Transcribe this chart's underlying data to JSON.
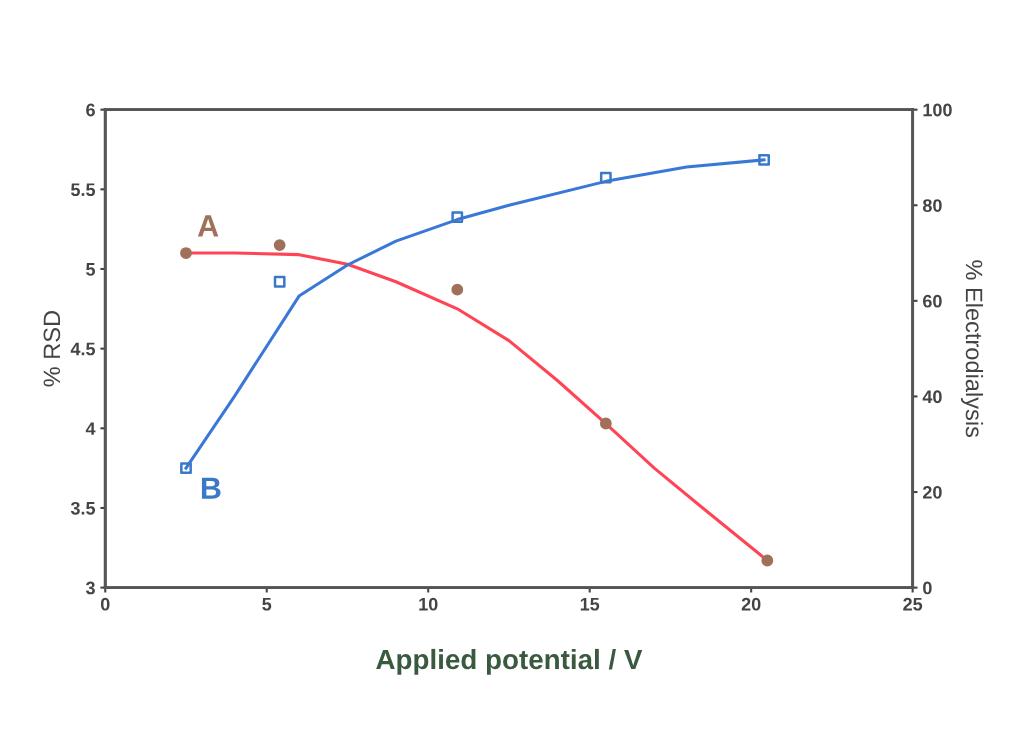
{
  "chart_data": {
    "type": "scatter",
    "xlabel": "Applied potential / V",
    "ylabel": "% RSD",
    "y2label": "% Electrodialysis",
    "xlim": [
      0,
      25
    ],
    "xticks": [
      0,
      5,
      10,
      15,
      20,
      25
    ],
    "ylim": [
      3,
      6
    ],
    "yticks": [
      3,
      3.5,
      4,
      4.5,
      5,
      5.5,
      6
    ],
    "y2lim": [
      0,
      100
    ],
    "y2ticks": [
      0,
      20,
      40,
      60,
      80,
      100
    ],
    "grid": false,
    "legend": false,
    "series": [
      {
        "name": "A",
        "marker": "circle",
        "color": "#a0705a",
        "x": [
          2.5,
          5.4,
          10.9,
          15.5,
          20.5
        ],
        "values": [
          5.1,
          5.15,
          4.87,
          4.03,
          3.17
        ]
      },
      {
        "type": "line",
        "marker": "none",
        "color": "#ff4455",
        "x": [
          2.5,
          4,
          6,
          7.5,
          9,
          10.9,
          12.5,
          14,
          15.5,
          17,
          18.5,
          20.5
        ],
        "values": [
          5.1,
          5.1,
          5.09,
          5.03,
          4.92,
          4.75,
          4.55,
          4.3,
          4.03,
          3.75,
          3.5,
          3.17
        ]
      },
      {
        "name": "B",
        "axis": "y2",
        "marker": "square",
        "color": "#3a78c8",
        "x": [
          2.5,
          5.4,
          10.9,
          15.5,
          20.4
        ],
        "values": [
          25,
          64,
          77.5,
          85.8,
          89.5
        ]
      },
      {
        "type": "line",
        "axis": "y2",
        "marker": "none",
        "color": "#3a78d8",
        "x": [
          2.5,
          4,
          6,
          7.5,
          9,
          10.9,
          12.5,
          15.5,
          18,
          20.4
        ],
        "values": [
          25,
          40,
          61,
          67.5,
          72.5,
          77,
          80,
          85,
          88,
          89.5
        ]
      }
    ]
  }
}
